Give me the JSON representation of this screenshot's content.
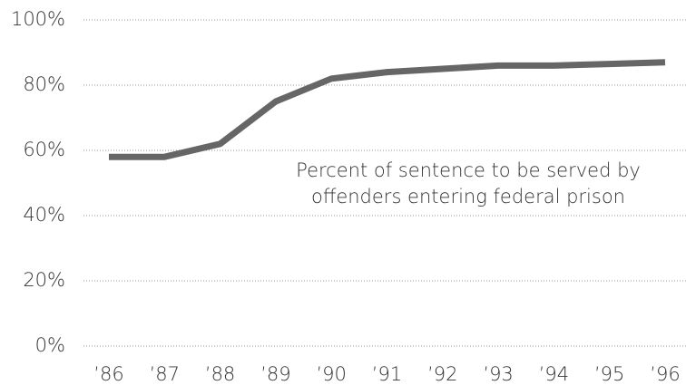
{
  "chart_data": {
    "type": "line",
    "categories": [
      "’86",
      "’87",
      "’88",
      "’89",
      "’90",
      "’91",
      "’92",
      "’93",
      "’94",
      "’95",
      "’96"
    ],
    "series": [
      {
        "name": "Percent of sentence to be served",
        "color": "#666666",
        "values": [
          58,
          58,
          62,
          75,
          82,
          84,
          85,
          86,
          86,
          86.5,
          87
        ]
      }
    ],
    "annotation": [
      "Percent of sentence to be served by",
      "offenders entering federal prison"
    ],
    "ylim": [
      0,
      100
    ],
    "yticks": [
      {
        "value": 0,
        "label": "0%"
      },
      {
        "value": 20,
        "label": "20%"
      },
      {
        "value": 40,
        "label": "40%"
      },
      {
        "value": 60,
        "label": "60%"
      },
      {
        "value": 80,
        "label": "80%"
      },
      {
        "value": 100,
        "label": "100%"
      }
    ],
    "grid": true
  }
}
